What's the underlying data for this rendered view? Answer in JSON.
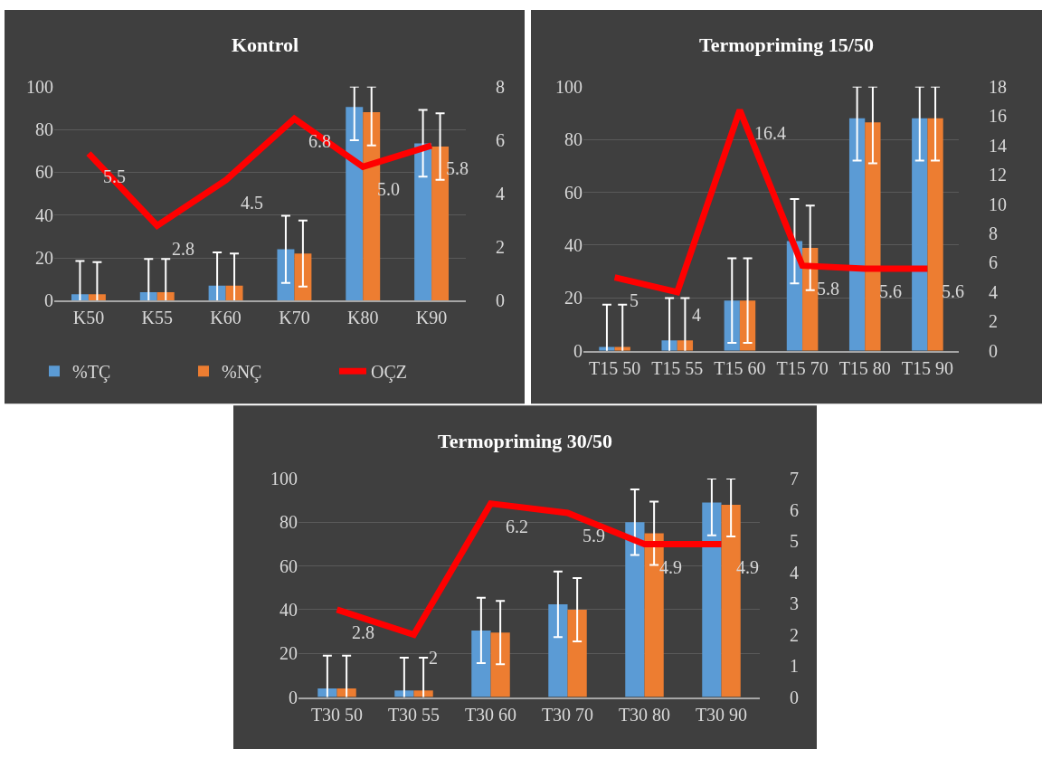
{
  "chart_data": [
    {
      "type": "bar",
      "title": "Kontrol",
      "categories": [
        "K50",
        "K55",
        "K60",
        "K70",
        "K80",
        "K90"
      ],
      "series": [
        {
          "name": "%TÇ",
          "color": "#5b9bd5",
          "values": [
            3,
            4,
            7,
            24,
            90.5,
            73.5
          ],
          "errors": [
            15.5,
            15.5,
            15.5,
            15.7,
            [
              75,
              100
            ],
            15.6
          ]
        },
        {
          "name": "%NÇ",
          "color": "#ed7d31",
          "values": [
            3,
            4,
            7,
            22,
            88,
            72
          ],
          "errors": [
            15,
            15.5,
            15,
            15.4,
            [
              72.5,
              100
            ],
            15.5
          ]
        },
        {
          "name": "OÇZ",
          "type": "line",
          "axis": "y2",
          "color": "#ff0000",
          "values": [
            5.5,
            2.8,
            4.5,
            6.8,
            5.0,
            5.8
          ],
          "value_labels": [
            "5.5",
            "2.8",
            "4.5",
            "6.8",
            "5.0",
            "5.8"
          ]
        }
      ],
      "ylim": [
        0,
        100
      ],
      "yticks": [
        0,
        20,
        40,
        60,
        80,
        100
      ],
      "y2lim": [
        0,
        8
      ],
      "y2ticks": [
        0,
        2,
        4,
        6,
        8
      ],
      "grid": "y",
      "legend": "bottom"
    },
    {
      "type": "bar",
      "title": "Termopriming 15/50",
      "categories": [
        "T15 50",
        "T15 55",
        "T15 60",
        "T15 70",
        "T15 80",
        "T15 90"
      ],
      "series": [
        {
          "color": "#5b9bd5",
          "values": [
            1.5,
            4,
            19,
            41.5,
            88,
            88
          ],
          "errors": [
            16,
            16,
            16,
            16,
            [
              72,
              100
            ],
            [
              72,
              100
            ]
          ]
        },
        {
          "color": "#ed7d31",
          "values": [
            1.5,
            4,
            19,
            39,
            86.5,
            88
          ],
          "errors": [
            16,
            16,
            16,
            16,
            [
              71,
              100
            ],
            [
              72,
              100
            ]
          ]
        },
        {
          "type": "line",
          "axis": "y2",
          "color": "#ff0000",
          "values": [
            5,
            4,
            16.4,
            5.8,
            5.6,
            5.6
          ],
          "value_labels": [
            "5",
            "4",
            "16.4",
            "5.8",
            "5.6",
            "5.6"
          ]
        }
      ],
      "ylim": [
        0,
        100
      ],
      "yticks": [
        0,
        20,
        40,
        60,
        80,
        100
      ],
      "y2lim": [
        0,
        18
      ],
      "y2ticks": [
        0,
        2,
        4,
        6,
        8,
        10,
        12,
        14,
        16,
        18
      ],
      "grid": "y"
    },
    {
      "type": "bar",
      "title": "Termopriming 30/50",
      "categories": [
        "T30 50",
        "T30 55",
        "T30 60",
        "T30 70",
        "T30 80",
        "T30 90"
      ],
      "series": [
        {
          "color": "#5b9bd5",
          "values": [
            4,
            3,
            30.5,
            42.5,
            80,
            89
          ],
          "errors": [
            15,
            15,
            15,
            15,
            15,
            [
              74,
              100
            ]
          ]
        },
        {
          "color": "#ed7d31",
          "values": [
            4,
            3,
            29.5,
            40,
            75,
            88
          ],
          "errors": [
            15,
            15,
            14.5,
            14.5,
            14.5,
            [
              73.5,
              100
            ]
          ]
        },
        {
          "type": "line",
          "axis": "y2",
          "color": "#ff0000",
          "values": [
            2.8,
            2,
            6.2,
            5.9,
            4.9,
            4.9
          ],
          "value_labels": [
            "2.8",
            "2",
            "6.2",
            "5.9",
            "4.9",
            "4.9"
          ]
        }
      ],
      "ylim": [
        0,
        100
      ],
      "yticks": [
        0,
        20,
        40,
        60,
        80,
        100
      ],
      "y2lim": [
        0,
        7
      ],
      "y2ticks": [
        0,
        1,
        2,
        3,
        4,
        5,
        6,
        7
      ],
      "grid": "y"
    }
  ]
}
